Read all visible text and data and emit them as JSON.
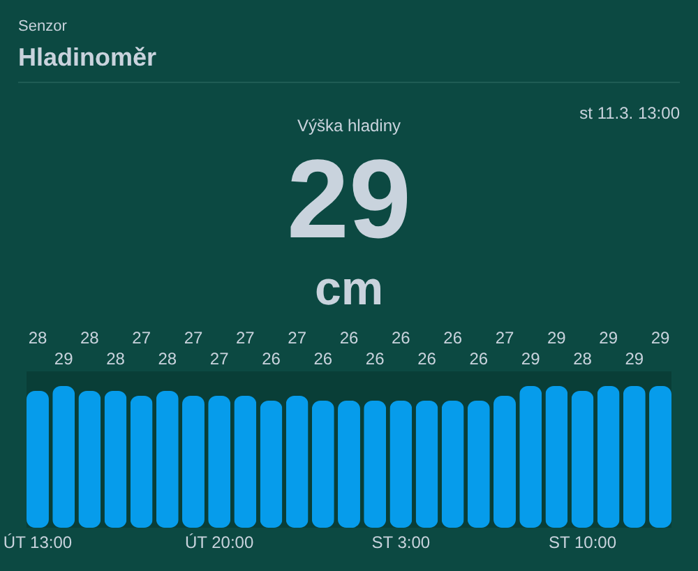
{
  "chart_data": {
    "type": "bar",
    "title": "Výška hladiny",
    "annotations": [
      "Senzor",
      "Hladinoměr",
      "st 11.3. 13:00",
      "29",
      "cm"
    ],
    "categories": [
      "ÚT 13:00",
      null,
      null,
      null,
      null,
      null,
      null,
      "ÚT 20:00",
      null,
      null,
      null,
      null,
      null,
      null,
      "ST 3:00",
      null,
      null,
      null,
      null,
      null,
      null,
      "ST 10:00",
      null,
      null,
      null
    ],
    "values": [
      28,
      29,
      28,
      28,
      27,
      28,
      27,
      27,
      27,
      26,
      27,
      26,
      26,
      26,
      26,
      26,
      26,
      26,
      27,
      29,
      29,
      28,
      29,
      29,
      29
    ],
    "color": "#069ceb",
    "ylim": [
      0,
      32
    ],
    "tick_labels": "x",
    "data_labels": true
  }
}
